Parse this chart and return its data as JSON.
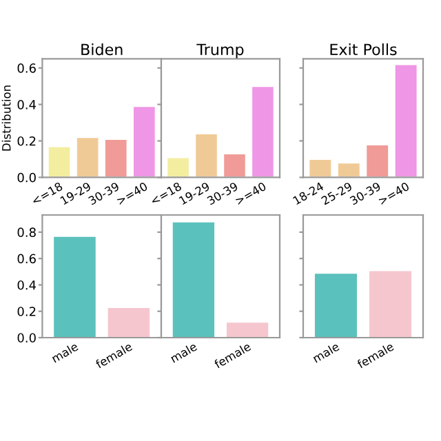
{
  "chart_data": [
    {
      "type": "bar",
      "title": "Biden",
      "ylabel": "Distribution",
      "categories": [
        "<=18",
        "19-29",
        "30-39",
        ">=40"
      ],
      "values": [
        0.17,
        0.22,
        0.21,
        0.39
      ],
      "colors": [
        "#f3eda0",
        "#f0ca96",
        "#f09b97",
        "#ef96e6"
      ],
      "ylim": [
        0,
        0.65
      ],
      "yticks": [
        {
          "value": 0,
          "label": "0.0"
        },
        0.2,
        0.4,
        0.6
      ],
      "grid": false,
      "legend": false
    },
    {
      "type": "bar",
      "title": "Trump",
      "categories": [
        "<=18",
        "19-29",
        "30-39",
        ">=40"
      ],
      "values": [
        0.11,
        0.24,
        0.13,
        0.5
      ],
      "colors": [
        "#f3eda0",
        "#f0ca96",
        "#f09b97",
        "#ef96e6"
      ],
      "ylim": [
        0,
        0.65
      ],
      "yticks": [
        0,
        0.2,
        0.4,
        0.6
      ],
      "tick_labels": "x",
      "grid": false,
      "legend": false
    },
    {
      "type": "bar",
      "title": "Exit Polls",
      "categories": [
        "18-24",
        "25-29",
        "30-39",
        ">=40"
      ],
      "values": [
        0.1,
        0.08,
        0.18,
        0.62
      ],
      "colors": [
        "#f0ca96",
        "#f0ca96",
        "#f09b97",
        "#ef96e6"
      ],
      "ylim": [
        0,
        0.65
      ],
      "yticks": [
        0,
        0.2,
        0.4,
        0.6
      ],
      "tick_labels": "x",
      "grid": false,
      "legend": false
    },
    {
      "type": "bar",
      "categories": [
        "male",
        "female"
      ],
      "values": [
        0.77,
        0.23
      ],
      "colors": [
        "#5bc1bc",
        "#f5c6ce"
      ],
      "ylim": [
        0,
        0.93
      ],
      "yticks": [
        {
          "value": 0,
          "label": "0.0"
        },
        0.2,
        0.4,
        0.6,
        0.8
      ],
      "grid": false,
      "legend": false
    },
    {
      "type": "bar",
      "categories": [
        "male",
        "female"
      ],
      "values": [
        0.88,
        0.12
      ],
      "colors": [
        "#5bc1bc",
        "#f5c6ce"
      ],
      "ylim": [
        0,
        0.93
      ],
      "yticks": [
        0,
        0.2,
        0.4,
        0.6,
        0.8
      ],
      "tick_labels": "x",
      "grid": false,
      "legend": false
    },
    {
      "type": "bar",
      "categories": [
        "male",
        "female"
      ],
      "values": [
        0.49,
        0.51
      ],
      "colors": [
        "#5bc1bc",
        "#f5c6ce"
      ],
      "ylim": [
        0,
        0.93
      ],
      "yticks": [
        0,
        0.2,
        0.4,
        0.6,
        0.8
      ],
      "tick_labels": "x",
      "grid": false,
      "legend": false
    }
  ]
}
